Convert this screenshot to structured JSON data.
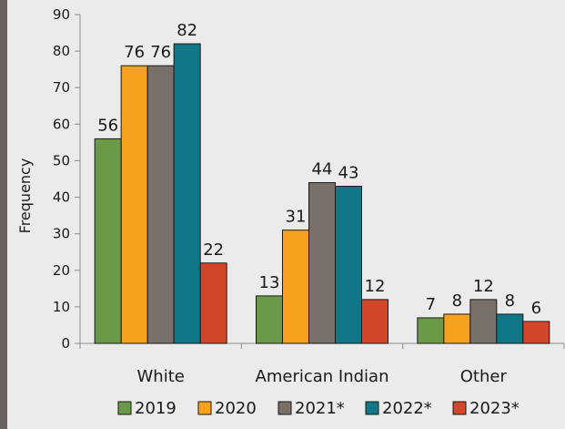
{
  "chart_data": {
    "type": "bar",
    "title": "",
    "xlabel": "",
    "ylabel": "Frequency",
    "ylim": [
      0,
      90
    ],
    "yticks": [
      0,
      10,
      20,
      30,
      40,
      50,
      60,
      70,
      80,
      90
    ],
    "grid": false,
    "legend_position": "bottom",
    "categories": [
      "White",
      "American Indian",
      "Other"
    ],
    "series": [
      {
        "name": "2019",
        "color": "#6a9a48",
        "values": [
          56,
          13,
          7
        ]
      },
      {
        "name": "2020",
        "color": "#f6a21e",
        "values": [
          76,
          31,
          8
        ]
      },
      {
        "name": "2021*",
        "color": "#7a706a",
        "values": [
          76,
          44,
          12
        ]
      },
      {
        "name": "2022*",
        "color": "#0f7788",
        "values": [
          82,
          43,
          8
        ]
      },
      {
        "name": "2023*",
        "color": "#d2472a",
        "values": [
          22,
          12,
          6
        ]
      }
    ]
  }
}
